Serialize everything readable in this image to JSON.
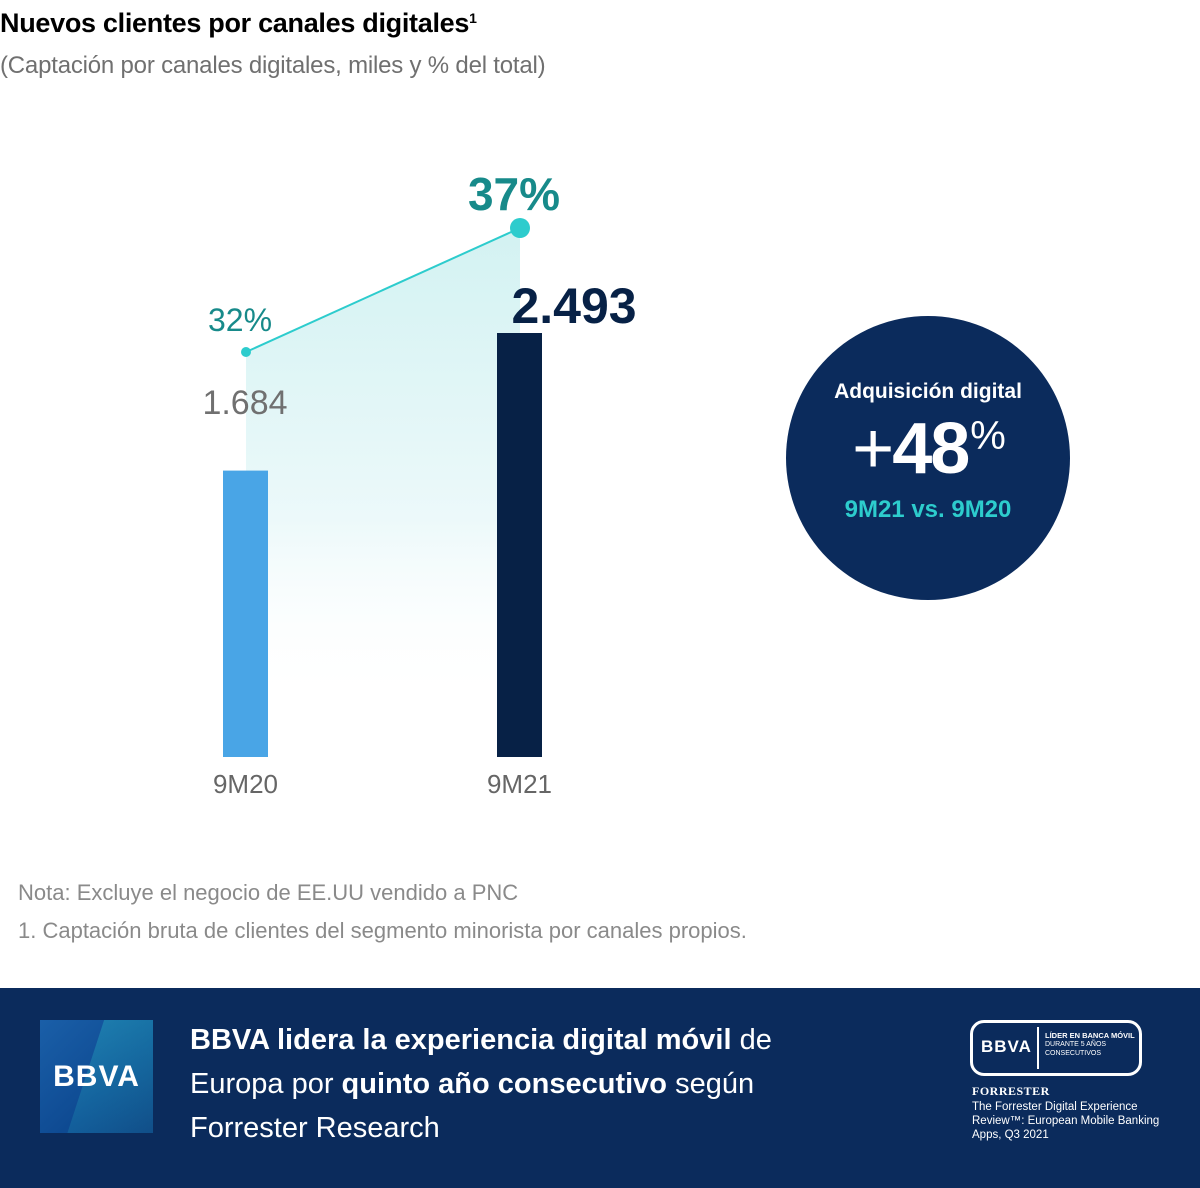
{
  "header": {
    "title": "Nuevos clientes por canales digitales",
    "title_footnote": "1",
    "subtitle": "(Captación por canales digitales, miles y % del total)"
  },
  "chart_data": {
    "type": "bar",
    "title": "Nuevos clientes por canales digitales",
    "subtitle": "(Captación por canales digitales, miles y % del total)",
    "categories": [
      "9M20",
      "9M21"
    ],
    "series": [
      {
        "name": "Captación por canales digitales (miles)",
        "type": "bar",
        "values": [
          1684,
          2493
        ],
        "labels": [
          "1.684",
          "2.493"
        ],
        "colors": [
          "#49a5e6",
          "#072146"
        ]
      },
      {
        "name": "% del total",
        "type": "line",
        "values": [
          32,
          37
        ],
        "labels": [
          "32%",
          "37%"
        ],
        "color": "#2dcccd"
      }
    ],
    "xlabel": "",
    "ylabel": "",
    "ylim": [
      0,
      2800
    ],
    "grid": false,
    "legend": "none"
  },
  "highlight": {
    "title": "Adquisición digital",
    "plus": "+",
    "value": "48",
    "unit": "%",
    "comparison": "9M21 vs. 9M20"
  },
  "notes": {
    "note": "Nota: Excluye el negocio de EE.UU vendido a PNC",
    "footnote": "1. Captación bruta de clientes del segmento minorista por canales propios."
  },
  "banner": {
    "logo": "BBVA",
    "text_parts": [
      {
        "text": "BBVA lidera la experiencia digital móvil",
        "bold": true
      },
      {
        "text": " de Europa por ",
        "bold": false
      },
      {
        "text": "quinto año consecutivo",
        "bold": true
      },
      {
        "text": " según Forrester Research",
        "bold": false
      }
    ],
    "badge": {
      "logo": "BBVA",
      "line1": "LÍDER EN BANCA MÓVIL",
      "line2": "DURANTE 5 AÑOS",
      "line3": "CONSECUTIVOS"
    },
    "source_brand": "FORRESTER",
    "source_caption": "The Forrester Digital Experience Review™: European Mobile Banking Apps, Q3 2021"
  },
  "colors": {
    "bar_9m20": "#49a5e6",
    "bar_9m21": "#072146",
    "line": "#2dcccd",
    "pct_label": "#178a8a",
    "navy": "#0b2b5c"
  }
}
